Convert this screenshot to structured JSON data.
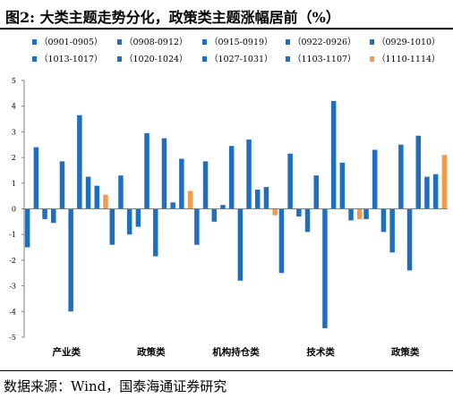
{
  "header": {
    "title": "图2:  大类主题走势分化，政策类主题涨幅居前（%）"
  },
  "footer": {
    "source": "数据来源：Wind，国泰海通证券研究"
  },
  "colors": {
    "primary_series": "#1f6fc0",
    "highlight_series": "#f39a4c",
    "axis": "#7f7f7f"
  },
  "chart_data": {
    "type": "bar",
    "title": "",
    "xlabel": "",
    "ylabel": "",
    "ylim": [
      -5,
      5
    ],
    "yticks": [
      -5,
      -4,
      -3,
      -2,
      -1,
      0,
      1,
      2,
      3,
      4,
      5
    ],
    "grid": false,
    "legend_position": "top",
    "categories": [
      "产业类",
      "政策类",
      "机构持仓类",
      "技术类",
      "政策类"
    ],
    "series": [
      {
        "name": "（0901-0905）",
        "color": "#1f6fc0",
        "values": [
          -1.5,
          -1.4,
          -1.4,
          -2.5,
          -0.4
        ]
      },
      {
        "name": "（0908-0912）",
        "color": "#1f6fc0",
        "values": [
          2.4,
          1.3,
          1.85,
          2.15,
          2.3
        ]
      },
      {
        "name": "（0915-0919）",
        "color": "#1f6fc0",
        "values": [
          -0.4,
          -1.0,
          -0.5,
          -0.3,
          -0.9
        ]
      },
      {
        "name": "（0922-0926）",
        "color": "#1f6fc0",
        "values": [
          -0.55,
          -0.7,
          0.15,
          -0.9,
          -1.7
        ]
      },
      {
        "name": "（0929-1010）",
        "color": "#1f6fc0",
        "values": [
          1.85,
          2.95,
          2.45,
          1.3,
          2.5
        ]
      },
      {
        "name": "（1013-1017）",
        "color": "#1f6fc0",
        "values": [
          -4.0,
          -1.85,
          -2.8,
          -4.65,
          -2.4
        ]
      },
      {
        "name": "（1020-1024）",
        "color": "#1f6fc0",
        "values": [
          3.65,
          2.75,
          2.7,
          4.2,
          2.85
        ]
      },
      {
        "name": "（1027-1031）",
        "color": "#1f6fc0",
        "values": [
          1.25,
          0.25,
          0.75,
          1.8,
          1.25
        ]
      },
      {
        "name": "（1103-1107）",
        "color": "#1f6fc0",
        "values": [
          0.9,
          1.95,
          0.85,
          -0.45,
          1.35
        ]
      },
      {
        "name": "（1110-1114）",
        "color": "#f39a4c",
        "values": [
          0.55,
          0.7,
          -0.25,
          -0.4,
          2.1
        ]
      }
    ]
  }
}
